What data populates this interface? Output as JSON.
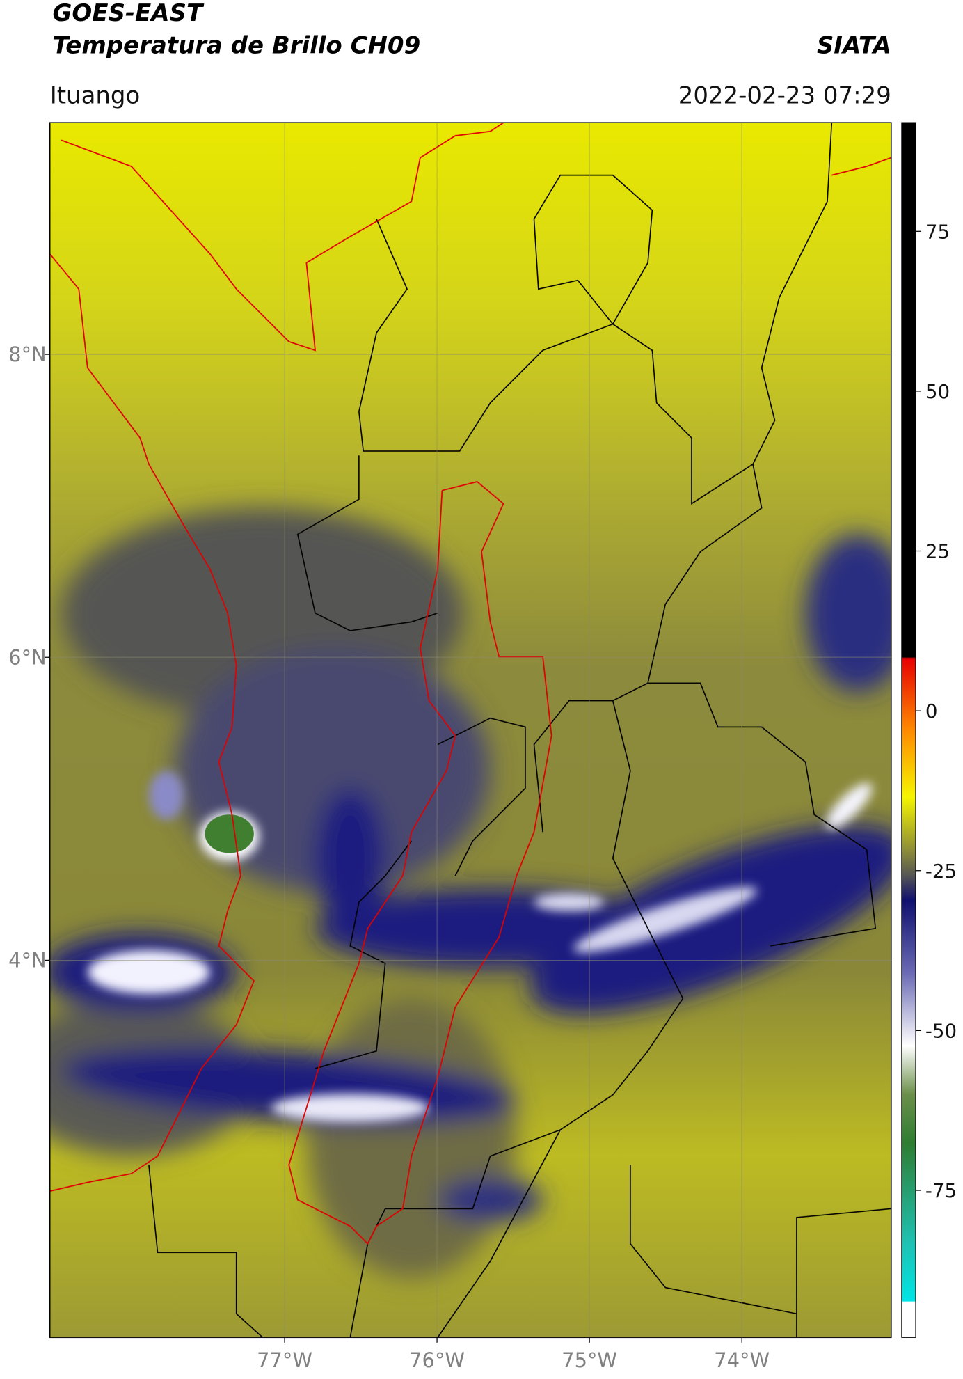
{
  "header": {
    "title": "GOES-EAST",
    "subtitle": "Temperatura de Brillo CH09",
    "source": "SIATA",
    "region": "Ituango",
    "datetime": "2022-02-23 07:29"
  },
  "map": {
    "xlim": [
      -78.54,
      -73.02
    ],
    "ylim": [
      1.51,
      9.53
    ],
    "xticks": [
      {
        "value": -77,
        "label": "77°W"
      },
      {
        "value": -76,
        "label": "76°W"
      },
      {
        "value": -75,
        "label": "75°W"
      },
      {
        "value": -74,
        "label": "74°W"
      }
    ],
    "yticks": [
      {
        "value": 8,
        "label": "8°N"
      },
      {
        "value": 6,
        "label": "6°N"
      },
      {
        "value": 4,
        "label": "4°N"
      }
    ],
    "grid": true
  },
  "colorbar": {
    "clim": [
      -98,
      92
    ],
    "ticks": [
      75,
      50,
      25,
      0,
      -25,
      -50,
      -75
    ]
  }
}
